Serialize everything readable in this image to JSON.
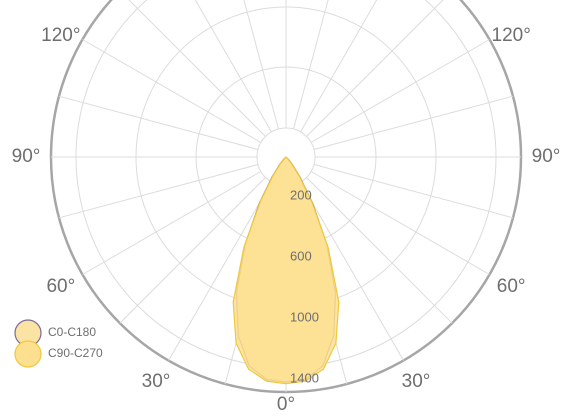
{
  "chart_data": {
    "type": "polar",
    "angle_labels": [
      {
        "text": "0°",
        "angle": 0
      },
      {
        "text": "30°",
        "angle": -30
      },
      {
        "text": "30°",
        "angle": 30
      },
      {
        "text": "60°",
        "angle": -60
      },
      {
        "text": "60°",
        "angle": 60
      },
      {
        "text": "90°",
        "angle": -90
      },
      {
        "text": "90°",
        "angle": 90
      },
      {
        "text": "120°",
        "angle": -120
      },
      {
        "text": "120°",
        "angle": 120
      }
    ],
    "ring_labels": [
      "200",
      "600",
      "1000",
      "1400"
    ],
    "r_max": 1400,
    "series": [
      {
        "name": "C0-C180",
        "fill": "#fbe3a4",
        "stroke": "#7e6a96",
        "angles": [
          -60,
          -45,
          -40,
          -35,
          -30,
          -25,
          -20,
          -15,
          -10,
          -5,
          0,
          5,
          10,
          15,
          20,
          25,
          30,
          35,
          40,
          45,
          60
        ],
        "values": [
          0,
          20,
          60,
          150,
          330,
          600,
          900,
          1150,
          1320,
          1390,
          1400,
          1390,
          1320,
          1150,
          900,
          600,
          330,
          150,
          60,
          20,
          0
        ]
      },
      {
        "name": "C90-C270",
        "fill": "#fde08f",
        "stroke": "#f0c83a",
        "angles": [
          -60,
          -45,
          -40,
          -35,
          -30,
          -25,
          -20,
          -15,
          -10,
          -5,
          0,
          5,
          10,
          15,
          20,
          25,
          30,
          35,
          40,
          45,
          60
        ],
        "values": [
          0,
          15,
          50,
          140,
          320,
          620,
          960,
          1200,
          1340,
          1400,
          1410,
          1400,
          1340,
          1200,
          960,
          620,
          320,
          140,
          50,
          15,
          0
        ]
      }
    ]
  }
}
